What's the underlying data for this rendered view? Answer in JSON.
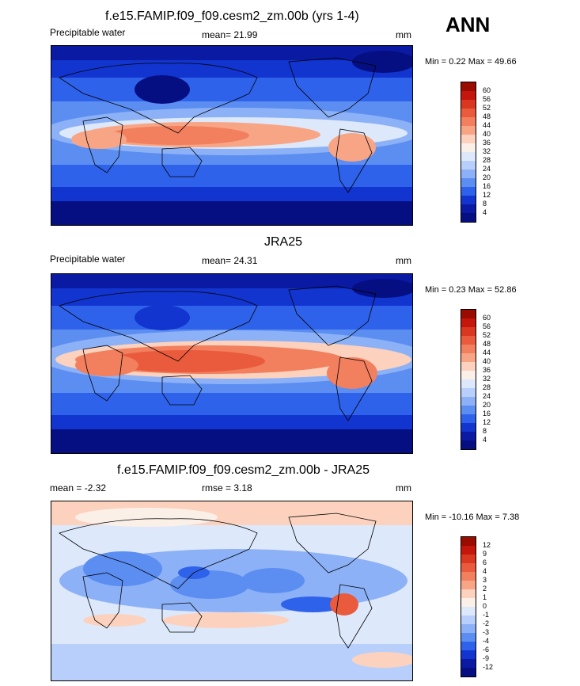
{
  "season": "ANN",
  "panels": [
    {
      "title": "f.e15.FAMIP.f09_f09.cesm2_zm.00b (yrs 1-4)",
      "left_label": "Precipitable water",
      "center_label": "mean=  21.99",
      "units": "mm",
      "minmax": "Min =   0.22 Max =  49.66",
      "colorbar_labels": [
        "60",
        "56",
        "52",
        "48",
        "44",
        "40",
        "36",
        "32",
        "28",
        "24",
        "20",
        "16",
        "12",
        "8",
        "4"
      ],
      "colorbar_colors": [
        "#9a0b00",
        "#c4160a",
        "#d9371f",
        "#ea5a3c",
        "#f27f5e",
        "#f8a586",
        "#fcd2bf",
        "#fbf0e8",
        "#dde9fb",
        "#b7cffa",
        "#8db1f6",
        "#5c8ef2",
        "#2f62ea",
        "#1234cf",
        "#0a1aa3",
        "#050f82"
      ]
    },
    {
      "title": "JRA25",
      "left_label": "Precipitable water",
      "center_label": "mean=  24.31",
      "units": "mm",
      "minmax": "Min =   0.23 Max =  52.86",
      "colorbar_labels": [
        "60",
        "56",
        "52",
        "48",
        "44",
        "40",
        "36",
        "32",
        "28",
        "24",
        "20",
        "16",
        "12",
        "8",
        "4"
      ],
      "colorbar_colors": [
        "#9a0b00",
        "#c4160a",
        "#d9371f",
        "#ea5a3c",
        "#f27f5e",
        "#f8a586",
        "#fcd2bf",
        "#fbf0e8",
        "#dde9fb",
        "#b7cffa",
        "#8db1f6",
        "#5c8ef2",
        "#2f62ea",
        "#1234cf",
        "#0a1aa3",
        "#050f82"
      ]
    },
    {
      "title": "f.e15.FAMIP.f09_f09.cesm2_zm.00b - JRA25",
      "left_label": "mean =  -2.32",
      "center_label": "rmse =   3.18",
      "units": "mm",
      "minmax": "Min = -10.16 Max =   7.38",
      "colorbar_labels": [
        "12",
        "9",
        "6",
        "4",
        "3",
        "2",
        "1",
        "0",
        "-1",
        "-2",
        "-3",
        "-4",
        "-6",
        "-9",
        "-12"
      ],
      "colorbar_colors": [
        "#9a0b00",
        "#c4160a",
        "#d9371f",
        "#ea5a3c",
        "#f27f5e",
        "#f8a586",
        "#fcd2bf",
        "#fbf0e8",
        "#dde9fb",
        "#b7cffa",
        "#8db1f6",
        "#5c8ef2",
        "#2f62ea",
        "#1234cf",
        "#0a1aa3",
        "#050f82"
      ]
    }
  ]
}
